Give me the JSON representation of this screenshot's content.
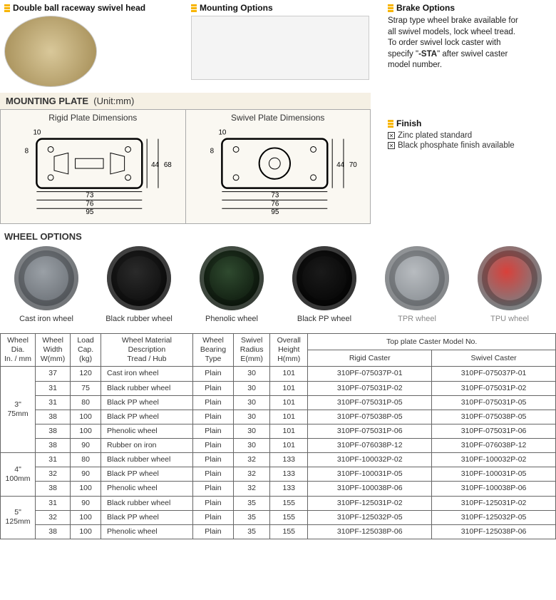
{
  "top": {
    "swivel_head": "Double ball raceway swivel head",
    "mounting": "Mounting Options",
    "brake_title": "Brake Options",
    "brake_line1": "Strap type wheel brake available for",
    "brake_line2": "all swivel models, lock wheel tread.",
    "brake_line3": "To order swivel lock caster with",
    "brake_line4a": "specify \"",
    "brake_sta": "-STA",
    "brake_line4b": "\" after swivel caster",
    "brake_line5": "model number."
  },
  "mplate": {
    "title_bold": "MOUNTING PLATE",
    "title_unit": "(Unit:mm)",
    "rigid_label": "Rigid Plate Dimensions",
    "swivel_label": "Swivel Plate Dimensions",
    "dims": {
      "top10": "10",
      "left8": "8",
      "h44": "44",
      "h68": "68",
      "h70": "70",
      "w73": "73",
      "w76": "76",
      "w95": "95"
    }
  },
  "finish": {
    "title": "Finish",
    "opt1": "Zinc plated standard",
    "opt2": "Black phosphate finish available"
  },
  "wheels": {
    "title": "WHEEL OPTIONS",
    "items": [
      {
        "label": "Cast iron wheel",
        "color1": "#9aa0a6",
        "color2": "#6b7076",
        "gray": false
      },
      {
        "label": "Black rubber wheel",
        "color1": "#2a2a2a",
        "color2": "#0d0d0d",
        "gray": false
      },
      {
        "label": "Phenolic wheel",
        "color1": "#2f4a2f",
        "color2": "#0e1a0e",
        "gray": false
      },
      {
        "label": "Black PP wheel",
        "color1": "#1a1a1a",
        "color2": "#050505",
        "gray": false
      },
      {
        "label": "TPR wheel",
        "color1": "#b8bcc0",
        "color2": "#8a8f94",
        "gray": true
      },
      {
        "label": "TPU wheel",
        "color1": "#d9403a",
        "color2": "#7b7f83",
        "gray": true
      }
    ]
  },
  "tbl": {
    "h_dia": "Wheel\nDia.\nIn. / mm",
    "h_w": "Wheel\nWidth\nW(mm)",
    "h_load": "Load\nCap.\n(kg)",
    "h_mat": "Wheel Material\nDescription\nTread / Hub",
    "h_brg": "Wheel\nBearing\nType",
    "h_rad": "Swivel\nRadius\nE(mm)",
    "h_h": "Overall\nHeight\nH(mm)",
    "h_top": "Top plate Caster Model No.",
    "h_rigid": "Rigid Caster",
    "h_swivel": "Swivel Caster",
    "groups": [
      {
        "dia": "3\"\n75mm",
        "rows": [
          {
            "w": "37",
            "load": "120",
            "mat": "Cast iron wheel",
            "brg": "Plain",
            "rad": "30",
            "h": "101",
            "rig": "310PF-075037P-01",
            "sw": "310PF-075037P-01"
          },
          {
            "w": "31",
            "load": "75",
            "mat": "Black rubber wheel",
            "brg": "Plain",
            "rad": "30",
            "h": "101",
            "rig": "310PF-075031P-02",
            "sw": "310PF-075031P-02"
          },
          {
            "w": "31",
            "load": "80",
            "mat": "Black PP wheel",
            "brg": "Plain",
            "rad": "30",
            "h": "101",
            "rig": "310PF-075031P-05",
            "sw": "310PF-075031P-05"
          },
          {
            "w": "38",
            "load": "100",
            "mat": "Black PP wheel",
            "brg": "Plain",
            "rad": "30",
            "h": "101",
            "rig": "310PF-075038P-05",
            "sw": "310PF-075038P-05"
          },
          {
            "w": "38",
            "load": "100",
            "mat": "Phenolic wheel",
            "brg": "Plain",
            "rad": "30",
            "h": "101",
            "rig": "310PF-075031P-06",
            "sw": "310PF-075031P-06"
          },
          {
            "w": "38",
            "load": "90",
            "mat": "Rubber on iron",
            "brg": "Plain",
            "rad": "30",
            "h": "101",
            "rig": "310PF-076038P-12",
            "sw": "310PF-076038P-12"
          }
        ]
      },
      {
        "dia": "4\"\n100mm",
        "rows": [
          {
            "w": "31",
            "load": "80",
            "mat": "Black rubber wheel",
            "brg": "Plain",
            "rad": "32",
            "h": "133",
            "rig": "310PF-100032P-02",
            "sw": "310PF-100032P-02"
          },
          {
            "w": "32",
            "load": "90",
            "mat": "Black PP wheel",
            "brg": "Plain",
            "rad": "32",
            "h": "133",
            "rig": "310PF-100031P-05",
            "sw": "310PF-100031P-05"
          },
          {
            "w": "38",
            "load": "100",
            "mat": "Phenolic wheel",
            "brg": "Plain",
            "rad": "32",
            "h": "133",
            "rig": "310PF-100038P-06",
            "sw": "310PF-100038P-06"
          }
        ]
      },
      {
        "dia": "5\"\n125mm",
        "rows": [
          {
            "w": "31",
            "load": "90",
            "mat": "Black rubber wheel",
            "brg": "Plain",
            "rad": "35",
            "h": "155",
            "rig": "310PF-125031P-02",
            "sw": "310PF-125031P-02"
          },
          {
            "w": "32",
            "load": "100",
            "mat": "Black PP wheel",
            "brg": "Plain",
            "rad": "35",
            "h": "155",
            "rig": "310PF-125032P-05",
            "sw": "310PF-125032P-05"
          },
          {
            "w": "38",
            "load": "100",
            "mat": "Phenolic wheel",
            "brg": "Plain",
            "rad": "35",
            "h": "155",
            "rig": "310PF-125038P-06",
            "sw": "310PF-125038P-06"
          }
        ]
      }
    ]
  }
}
